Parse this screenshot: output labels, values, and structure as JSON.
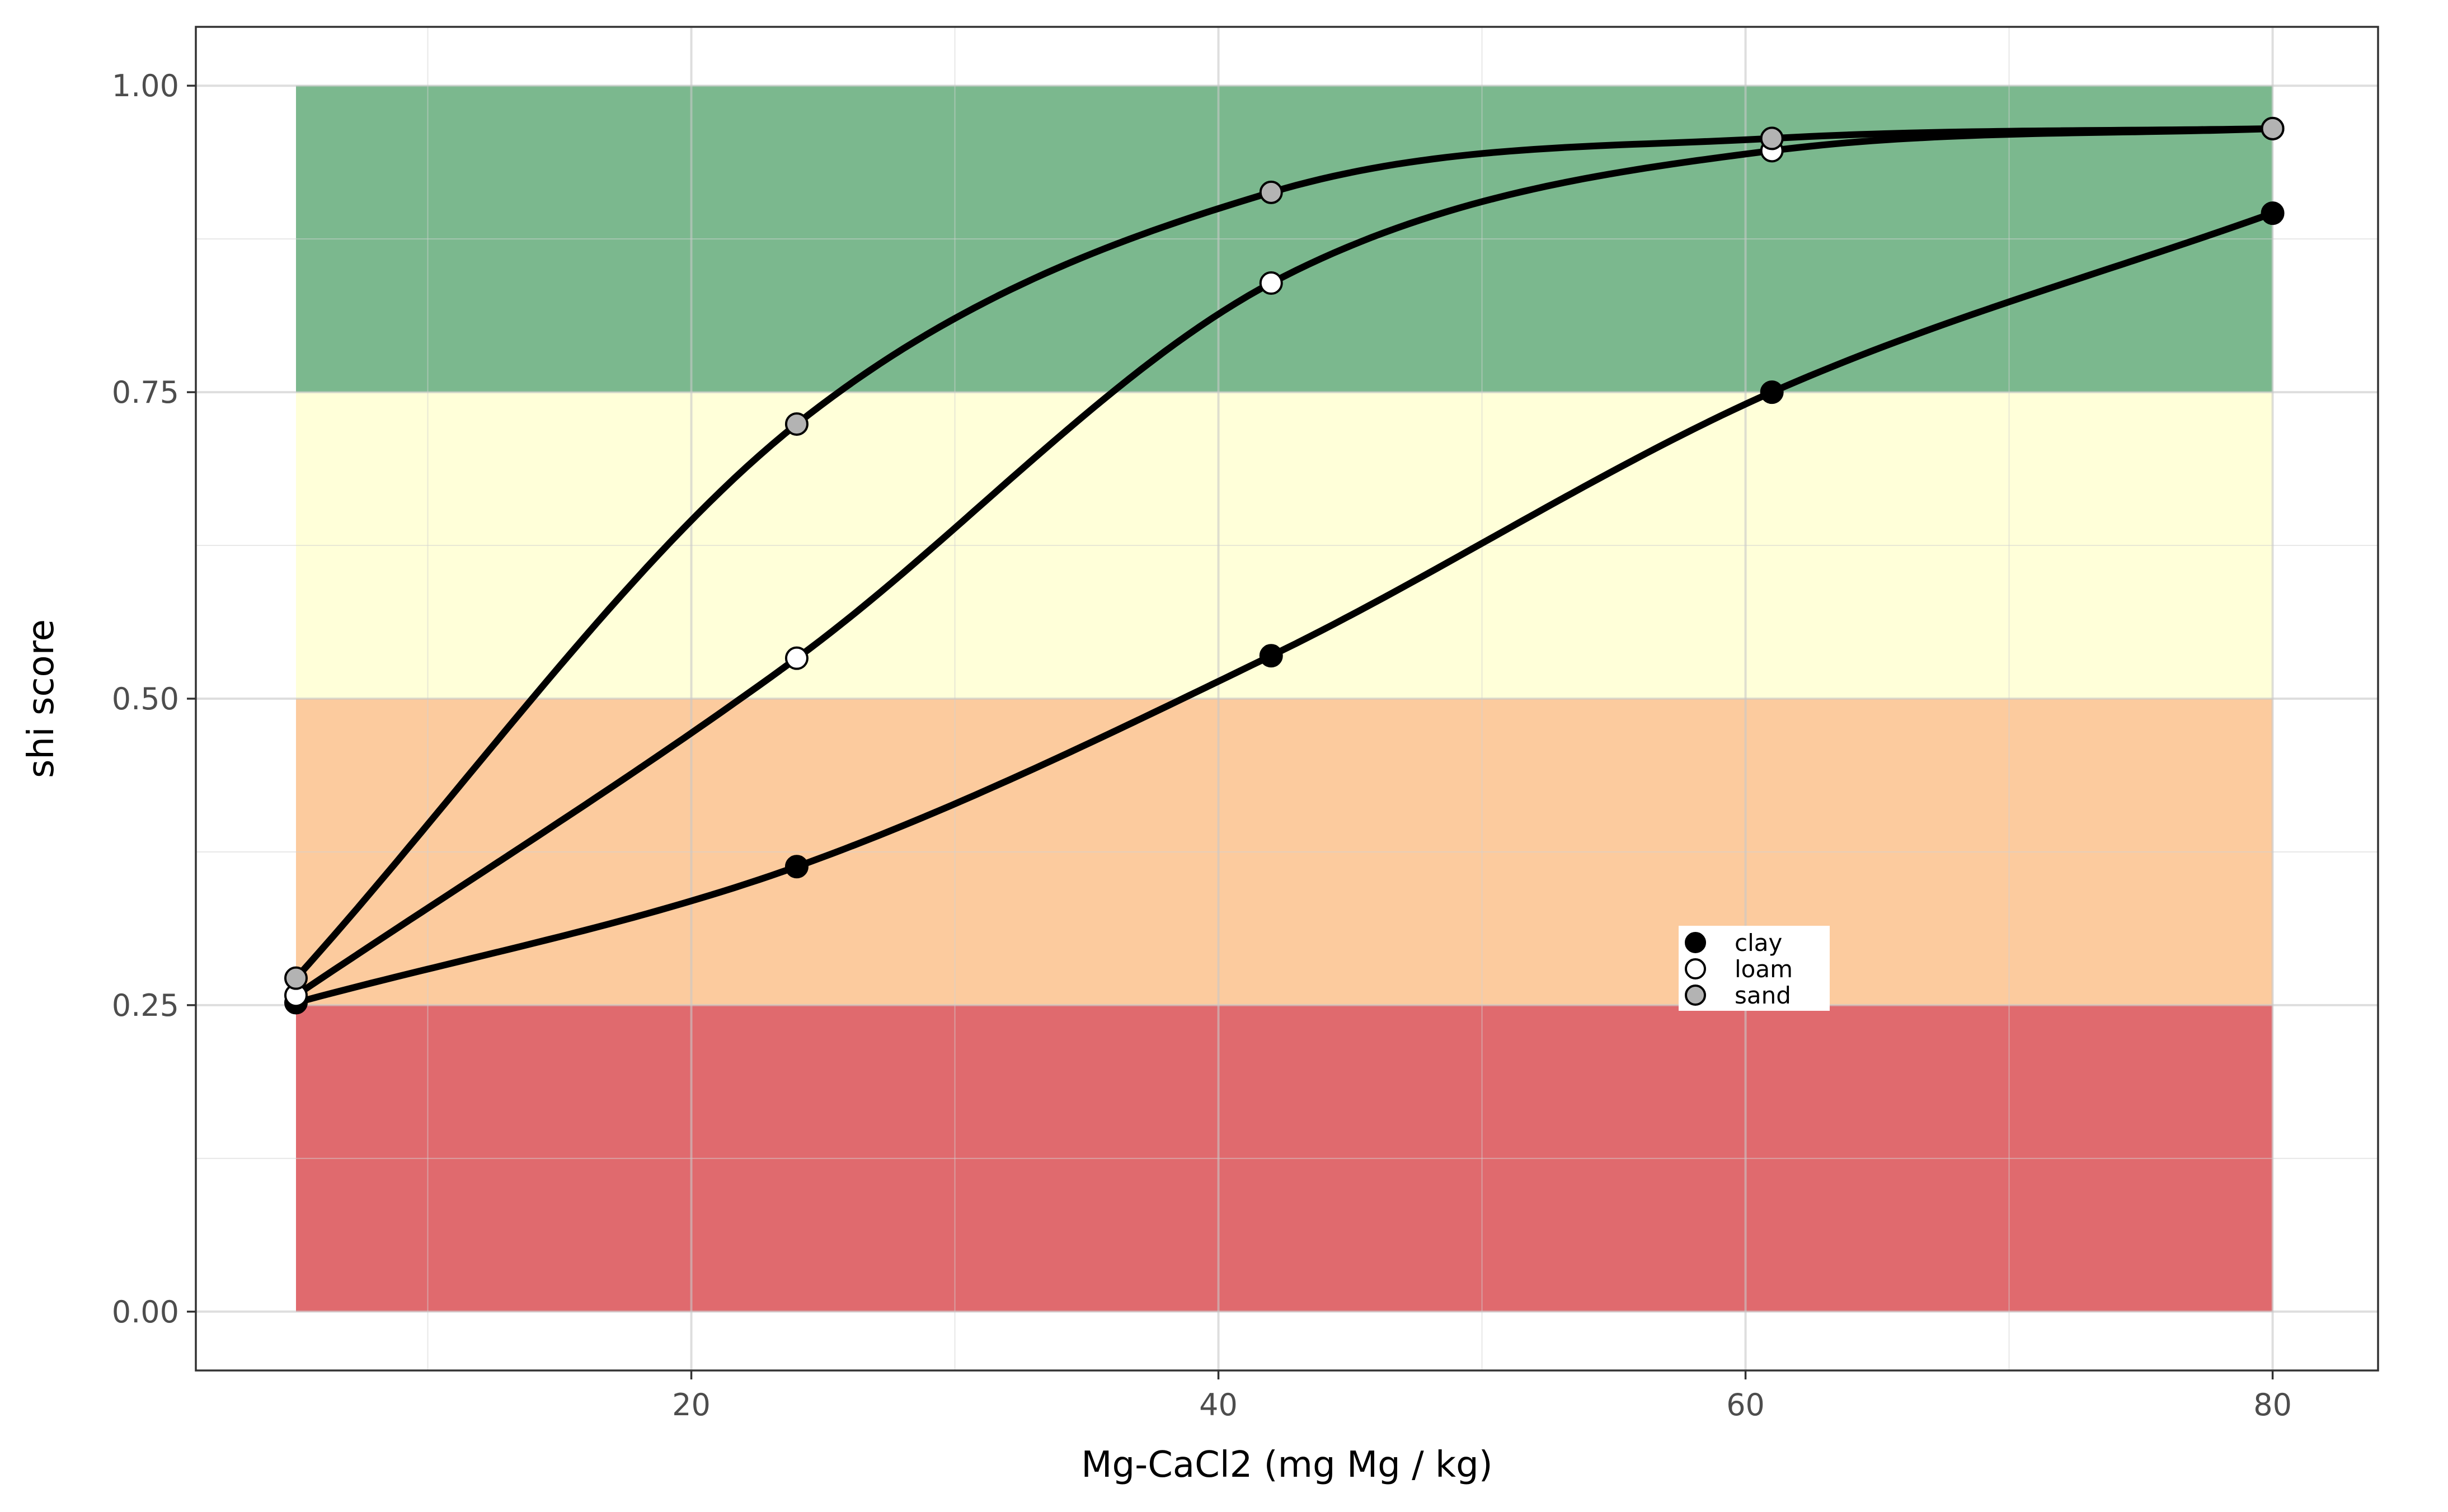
{
  "chart_data": {
    "type": "line",
    "xlabel": "Mg-CaCl2 (mg Mg / kg)",
    "ylabel": "shi score",
    "xlim": [
      1.2,
      84
    ],
    "ylim": [
      -0.048,
      1.048
    ],
    "x_ticks": [
      20,
      40,
      60,
      80
    ],
    "x_minor_ticks": [
      10,
      30,
      50,
      70
    ],
    "y_ticks": [
      0.0,
      0.25,
      0.5,
      0.75,
      1.0
    ],
    "y_tick_labels": [
      "0.00",
      "0.25",
      "0.50",
      "0.75",
      "1.00"
    ],
    "y_minor_ticks": [
      0.125,
      0.375,
      0.625,
      0.875
    ],
    "grid": true,
    "bands": [
      {
        "x": [
          5,
          80
        ],
        "y": [
          0.0,
          0.25
        ],
        "color": "#E06A6E"
      },
      {
        "x": [
          5,
          80
        ],
        "y": [
          0.25,
          0.5
        ],
        "color": "#FCCB9E"
      },
      {
        "x": [
          5,
          80
        ],
        "y": [
          0.5,
          0.75
        ],
        "color": "#FFFFD9"
      },
      {
        "x": [
          5,
          80
        ],
        "y": [
          0.75,
          1.0
        ],
        "color": "#7BB88E"
      }
    ],
    "series": [
      {
        "name": "clay",
        "fill": "#000000",
        "x": [
          5,
          24,
          42,
          61,
          80
        ],
        "y": [
          0.252,
          0.363,
          0.535,
          0.75,
          0.896
        ]
      },
      {
        "name": "loam",
        "fill": "#ffffff",
        "x": [
          5,
          24,
          42,
          61,
          80
        ],
        "y": [
          0.258,
          0.533,
          0.839,
          0.947,
          0.965
        ]
      },
      {
        "name": "sand",
        "fill": "#b3b3b3",
        "x": [
          5,
          24,
          42,
          61,
          80
        ],
        "y": [
          0.272,
          0.724,
          0.913,
          0.957,
          0.965
        ]
      }
    ],
    "legend_position": "inside bottom-right"
  }
}
